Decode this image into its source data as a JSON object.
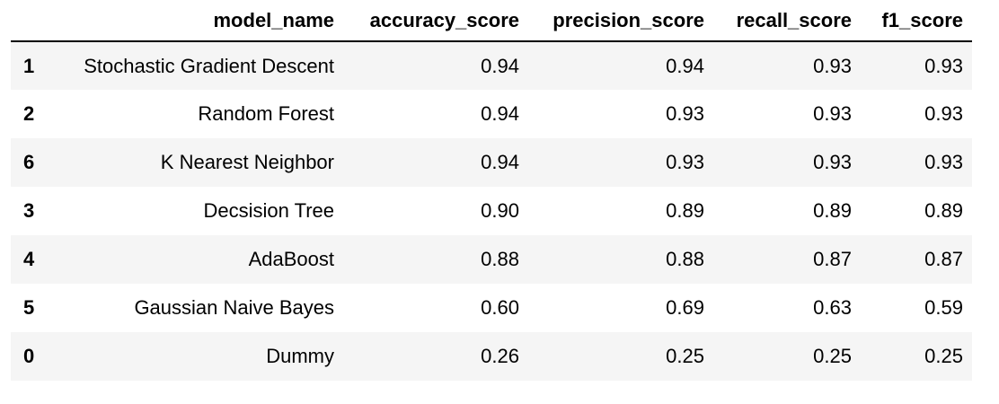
{
  "table": {
    "columns": [
      "",
      "model_name",
      "accuracy_score",
      "precision_score",
      "recall_score",
      "f1_score"
    ],
    "rows": [
      {
        "index": "1",
        "model_name": "Stochastic Gradient Descent",
        "accuracy_score": "0.94",
        "precision_score": "0.94",
        "recall_score": "0.93",
        "f1_score": "0.93"
      },
      {
        "index": "2",
        "model_name": "Random Forest",
        "accuracy_score": "0.94",
        "precision_score": "0.93",
        "recall_score": "0.93",
        "f1_score": "0.93"
      },
      {
        "index": "6",
        "model_name": "K Nearest Neighbor",
        "accuracy_score": "0.94",
        "precision_score": "0.93",
        "recall_score": "0.93",
        "f1_score": "0.93"
      },
      {
        "index": "3",
        "model_name": "Decsision Tree",
        "accuracy_score": "0.90",
        "precision_score": "0.89",
        "recall_score": "0.89",
        "f1_score": "0.89"
      },
      {
        "index": "4",
        "model_name": "AdaBoost",
        "accuracy_score": "0.88",
        "precision_score": "0.88",
        "recall_score": "0.87",
        "f1_score": "0.87"
      },
      {
        "index": "5",
        "model_name": "Gaussian Naive Bayes",
        "accuracy_score": "0.60",
        "precision_score": "0.69",
        "recall_score": "0.63",
        "f1_score": "0.59"
      },
      {
        "index": "0",
        "model_name": "Dummy",
        "accuracy_score": "0.26",
        "precision_score": "0.25",
        "recall_score": "0.25",
        "f1_score": "0.25"
      }
    ]
  },
  "colors": {
    "stripe": "#f5f5f5",
    "background": "#ffffff",
    "header_rule": "#000000"
  }
}
